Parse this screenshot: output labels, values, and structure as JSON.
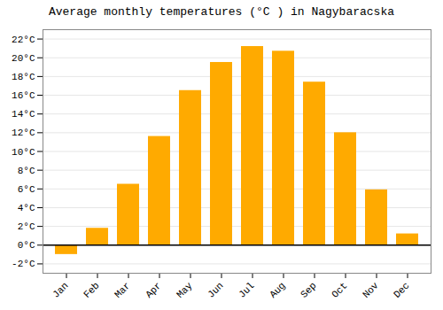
{
  "chart_data": {
    "type": "bar",
    "title": "Average monthly temperatures (°C ) in Nagybaracska",
    "categories": [
      "Jan",
      "Feb",
      "Mar",
      "Apr",
      "May",
      "Jun",
      "Jul",
      "Aug",
      "Sep",
      "Oct",
      "Nov",
      "Dec"
    ],
    "values": [
      -1.0,
      1.8,
      6.5,
      11.6,
      16.5,
      19.5,
      21.2,
      20.7,
      17.4,
      12.0,
      5.9,
      1.2
    ],
    "color": "#FFAA00",
    "ylim": [
      -3,
      23
    ],
    "yticks": [
      {
        "value": -2,
        "label": "-2°C"
      },
      {
        "value": 0,
        "label": "0°C"
      },
      {
        "value": 2,
        "label": "2°C"
      },
      {
        "value": 4,
        "label": "4°C"
      },
      {
        "value": 6,
        "label": "6°C"
      },
      {
        "value": 8,
        "label": "8°C"
      },
      {
        "value": 10,
        "label": "10°C"
      },
      {
        "value": 12,
        "label": "12°C"
      },
      {
        "value": 14,
        "label": "14°C"
      },
      {
        "value": 16,
        "label": "16°C"
      },
      {
        "value": 18,
        "label": "18°C"
      },
      {
        "value": 20,
        "label": "20°C"
      },
      {
        "value": 22,
        "label": "22°C"
      }
    ],
    "grid": true
  }
}
